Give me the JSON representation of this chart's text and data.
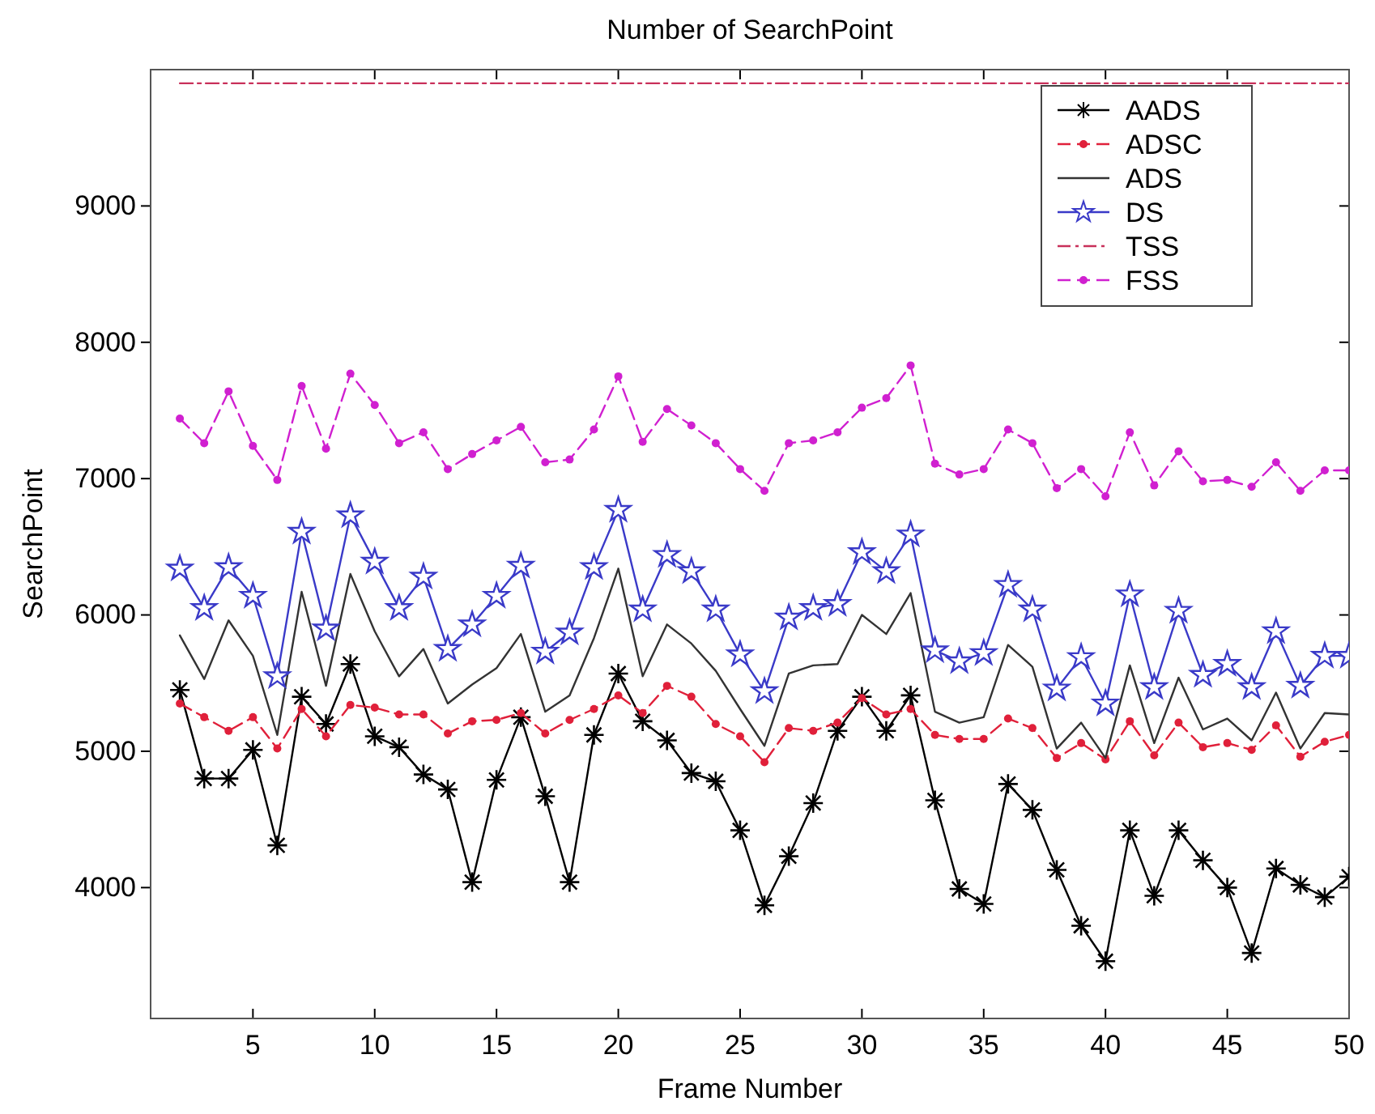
{
  "chart_data": {
    "type": "line",
    "title": "Number of SearchPoint",
    "xlabel": "Frame Number",
    "ylabel": "SearchPoint",
    "x": [
      2,
      3,
      4,
      5,
      6,
      7,
      8,
      9,
      10,
      11,
      12,
      13,
      14,
      15,
      16,
      17,
      18,
      19,
      20,
      21,
      22,
      23,
      24,
      25,
      26,
      27,
      28,
      29,
      30,
      31,
      32,
      33,
      34,
      35,
      36,
      37,
      38,
      39,
      40,
      41,
      42,
      43,
      44,
      45,
      46,
      47,
      48,
      49,
      50
    ],
    "xlim": [
      0.8,
      50
    ],
    "xticks": [
      5,
      10,
      15,
      20,
      25,
      30,
      35,
      40,
      45,
      50
    ],
    "ylim": [
      3040,
      10000
    ],
    "yticks": [
      4000,
      5000,
      6000,
      7000,
      8000,
      9000
    ],
    "grid": false,
    "legend": "top right",
    "series": [
      {
        "name": "AADS",
        "color": "#000000",
        "marker": "cross",
        "line_style": "solid",
        "values": [
          5450,
          4800,
          4800,
          5010,
          4310,
          5400,
          5200,
          5640,
          5110,
          5030,
          4830,
          4720,
          4040,
          4790,
          5250,
          4670,
          4040,
          5120,
          5570,
          5220,
          5080,
          4840,
          4780,
          4420,
          3870,
          4230,
          4620,
          5150,
          5400,
          5150,
          5410,
          4640,
          3990,
          3880,
          4760,
          4570,
          4130,
          3720,
          3460,
          4420,
          3940,
          4420,
          4200,
          4000,
          3520,
          4140,
          4020,
          3930,
          4080
        ]
      },
      {
        "name": "ADSC",
        "color": "#e0203a",
        "marker": "circle",
        "line_style": "dashed",
        "values": [
          5350,
          5250,
          5150,
          5250,
          5020,
          5310,
          5110,
          5340,
          5320,
          5270,
          5270,
          5130,
          5220,
          5230,
          5280,
          5130,
          5230,
          5310,
          5410,
          5280,
          5480,
          5400,
          5200,
          5110,
          4920,
          5170,
          5150,
          5210,
          5390,
          5270,
          5310,
          5120,
          5090,
          5090,
          5240,
          5170,
          4950,
          5060,
          4940,
          5220,
          4970,
          5210,
          5030,
          5060,
          5010,
          5190,
          4960,
          5070,
          5120
        ]
      },
      {
        "name": "ADS",
        "color": "#333333",
        "marker": "none",
        "line_style": "solid",
        "values": [
          5850,
          5530,
          5960,
          5700,
          5120,
          6170,
          5480,
          6300,
          5880,
          5550,
          5750,
          5350,
          5490,
          5610,
          5860,
          5290,
          5410,
          5830,
          6340,
          5550,
          5930,
          5790,
          5590,
          5310,
          5040,
          5570,
          5630,
          5640,
          6000,
          5860,
          6160,
          5290,
          5210,
          5250,
          5780,
          5620,
          5020,
          5210,
          4950,
          5630,
          5060,
          5540,
          5160,
          5240,
          5080,
          5430,
          5020,
          5280,
          5270
        ]
      },
      {
        "name": "DS",
        "color": "#3a3ac8",
        "marker": "star",
        "line_style": "solid",
        "values": [
          6340,
          6050,
          6350,
          6140,
          5550,
          6610,
          5900,
          6730,
          6390,
          6050,
          6280,
          5750,
          5930,
          6140,
          6360,
          5730,
          5870,
          6350,
          6770,
          6040,
          6440,
          6320,
          6040,
          5710,
          5440,
          5980,
          6050,
          6080,
          6460,
          6320,
          6590,
          5740,
          5660,
          5720,
          6220,
          6040,
          5460,
          5690,
          5350,
          6150,
          5470,
          6030,
          5560,
          5640,
          5470,
          5880,
          5480,
          5700,
          5700
        ]
      },
      {
        "name": "TSS",
        "color": "#c8305a",
        "marker": "none",
        "line_style": "dashdot",
        "values": [
          9900,
          9900,
          9900,
          9900,
          9900,
          9900,
          9900,
          9900,
          9900,
          9900,
          9900,
          9900,
          9900,
          9900,
          9900,
          9900,
          9900,
          9900,
          9900,
          9900,
          9900,
          9900,
          9900,
          9900,
          9900,
          9900,
          9900,
          9900,
          9900,
          9900,
          9900,
          9900,
          9900,
          9900,
          9900,
          9900,
          9900,
          9900,
          9900,
          9900,
          9900,
          9900,
          9900,
          9900,
          9900,
          9900,
          9900,
          9900,
          9900
        ]
      },
      {
        "name": "FSS",
        "color": "#d020d0",
        "marker": "circle",
        "line_style": "dashed",
        "values": [
          7440,
          7260,
          7640,
          7240,
          6990,
          7680,
          7220,
          7770,
          7540,
          7260,
          7340,
          7070,
          7180,
          7280,
          7380,
          7120,
          7140,
          7360,
          7750,
          7270,
          7510,
          7390,
          7260,
          7070,
          6910,
          7260,
          7280,
          7340,
          7520,
          7590,
          7830,
          7110,
          7030,
          7070,
          7360,
          7260,
          6930,
          7070,
          6870,
          7340,
          6950,
          7200,
          6980,
          6990,
          6940,
          7120,
          6910,
          7060,
          7060
        ]
      }
    ]
  }
}
